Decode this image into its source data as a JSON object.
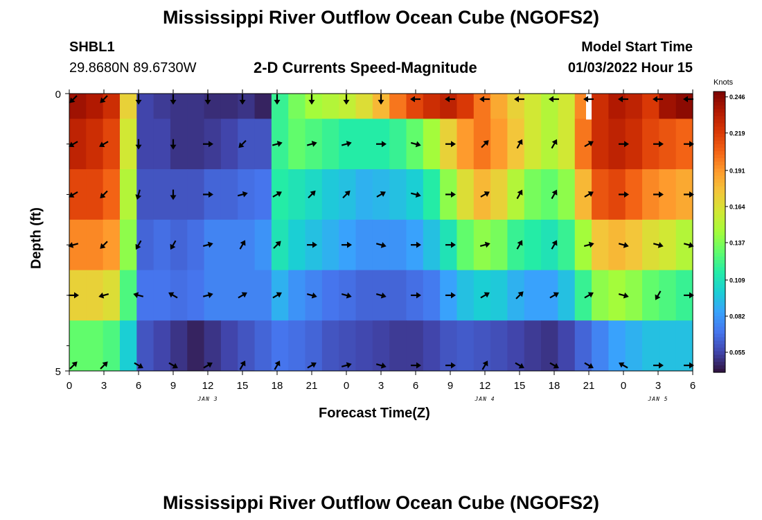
{
  "page": {
    "title": "Mississippi River Outflow Ocean Cube (NGOFS2)",
    "bottom_title": "Mississippi River Outflow Ocean Cube (NGOFS2)",
    "station": "SHBL1",
    "coords": "29.8680N  89.6730W",
    "subtitle": "2-D Currents Speed-Magnitude",
    "model_start_label": "Model Start Time",
    "model_start_value": "01/03/2022 Hour 15"
  },
  "chart_data": {
    "type": "heatmap",
    "title": "2-D Currents Speed-Magnitude",
    "xlabel": "Forecast Time(Z)",
    "ylabel": "Depth (ft)",
    "x_tick_labels": [
      "0",
      "3",
      "6",
      "9",
      "12",
      "15",
      "18",
      "21",
      "0",
      "3",
      "6",
      "9",
      "12",
      "15",
      "18",
      "21",
      "0",
      "3",
      "6"
    ],
    "x_hours": [
      0,
      3,
      6,
      9,
      12,
      15,
      18,
      21,
      24,
      27,
      30,
      33,
      36,
      39,
      42,
      45,
      48,
      51,
      54
    ],
    "date_labels": [
      {
        "text": "JAN 3",
        "hour": 12
      },
      {
        "text": "JAN 4",
        "hour": 36
      },
      {
        "text": "JAN 5",
        "hour": 51
      }
    ],
    "y_tick_labels": [
      "0",
      "5"
    ],
    "ylim": [
      0,
      5
    ],
    "depth_levels": [
      0,
      1,
      2,
      3,
      4,
      5
    ],
    "colorbar": {
      "unit": "Knots",
      "tick_labels": [
        "0.246",
        "0.219",
        "0.191",
        "0.164",
        "0.137",
        "0.109",
        "0.082",
        "0.055"
      ],
      "range": [
        0.04,
        0.25
      ],
      "colors": [
        "#30123b",
        "#4145ab",
        "#4675ed",
        "#39a2fc",
        "#1bcfd4",
        "#24eca6",
        "#61fc6c",
        "#a4fc3b",
        "#d1e834",
        "#f3c63a",
        "#fe9b2d",
        "#f36315",
        "#d93806",
        "#b11901",
        "#7a0403"
      ]
    },
    "rows": [
      {
        "depth": 0,
        "values": [
          0.24,
          0.235,
          0.225,
          0.17,
          0.055,
          0.052,
          0.05,
          0.05,
          0.048,
          0.048,
          0.05,
          0.045,
          0.12,
          0.135,
          0.145,
          0.15,
          0.155,
          0.165,
          0.18,
          0.2,
          0.215,
          0.225,
          0.23,
          0.22,
          0.2,
          0.185,
          0.17,
          0.16,
          0.15,
          0.16,
          0.195,
          0.225,
          0.235,
          0.23,
          0.22,
          0.24,
          0.245
        ]
      },
      {
        "depth": 1,
        "values": [
          0.23,
          0.225,
          0.215,
          0.16,
          0.055,
          0.055,
          0.05,
          0.05,
          0.052,
          0.055,
          0.06,
          0.06,
          0.12,
          0.13,
          0.125,
          0.12,
          0.115,
          0.115,
          0.115,
          0.12,
          0.13,
          0.145,
          0.17,
          0.19,
          0.2,
          0.19,
          0.175,
          0.16,
          0.15,
          0.16,
          0.2,
          0.225,
          0.23,
          0.225,
          0.215,
          0.21,
          0.205
        ]
      },
      {
        "depth": 2,
        "values": [
          0.215,
          0.215,
          0.205,
          0.15,
          0.06,
          0.06,
          0.06,
          0.06,
          0.065,
          0.065,
          0.068,
          0.07,
          0.115,
          0.11,
          0.105,
          0.098,
          0.095,
          0.09,
          0.092,
          0.095,
          0.1,
          0.115,
          0.14,
          0.165,
          0.18,
          0.17,
          0.15,
          0.135,
          0.13,
          0.14,
          0.18,
          0.21,
          0.215,
          0.205,
          0.195,
          0.19,
          0.185
        ]
      },
      {
        "depth": 3,
        "values": [
          0.195,
          0.195,
          0.19,
          0.14,
          0.065,
          0.068,
          0.065,
          0.068,
          0.075,
          0.075,
          0.075,
          0.08,
          0.11,
          0.1,
          0.095,
          0.09,
          0.085,
          0.08,
          0.08,
          0.08,
          0.085,
          0.095,
          0.11,
          0.13,
          0.14,
          0.135,
          0.12,
          0.115,
          0.11,
          0.12,
          0.145,
          0.175,
          0.18,
          0.175,
          0.165,
          0.16,
          0.15
        ]
      },
      {
        "depth": 4,
        "values": [
          0.17,
          0.17,
          0.165,
          0.125,
          0.07,
          0.07,
          0.068,
          0.07,
          0.075,
          0.075,
          0.075,
          0.075,
          0.09,
          0.08,
          0.075,
          0.07,
          0.068,
          0.065,
          0.065,
          0.065,
          0.068,
          0.072,
          0.085,
          0.095,
          0.1,
          0.098,
          0.09,
          0.085,
          0.085,
          0.095,
          0.12,
          0.14,
          0.145,
          0.14,
          0.13,
          0.125,
          0.12
        ]
      },
      {
        "depth": 5,
        "values": [
          0.13,
          0.13,
          0.125,
          0.1,
          0.06,
          0.055,
          0.05,
          0.045,
          0.05,
          0.055,
          0.06,
          0.065,
          0.07,
          0.068,
          0.065,
          0.06,
          0.058,
          0.056,
          0.054,
          0.052,
          0.052,
          0.055,
          0.06,
          0.062,
          0.06,
          0.058,
          0.055,
          0.052,
          0.05,
          0.055,
          0.065,
          0.075,
          0.085,
          0.09,
          0.095,
          0.095,
          0.095
        ]
      }
    ],
    "missing": [
      {
        "hour": 45,
        "depth": 0
      }
    ],
    "arrows": [
      {
        "depth": 0,
        "angles": [
          135,
          135,
          90,
          90,
          90,
          90,
          90,
          90,
          90,
          90,
          180,
          180,
          180,
          180,
          180,
          180,
          180,
          180,
          180
        ]
      },
      {
        "depth": 1,
        "angles": [
          150,
          150,
          90,
          90,
          0,
          135,
          345,
          345,
          345,
          0,
          15,
          0,
          315,
          300,
          300,
          330,
          0,
          0,
          0
        ]
      },
      {
        "depth": 2,
        "angles": [
          150,
          135,
          105,
          90,
          0,
          345,
          330,
          315,
          315,
          330,
          15,
          0,
          330,
          300,
          300,
          330,
          0,
          0,
          0
        ]
      },
      {
        "depth": 3,
        "angles": [
          165,
          135,
          120,
          120,
          345,
          300,
          315,
          0,
          0,
          15,
          0,
          0,
          345,
          300,
          300,
          345,
          15,
          15,
          15
        ]
      },
      {
        "depth": 4,
        "angles": [
          0,
          165,
          195,
          210,
          345,
          330,
          330,
          15,
          15,
          15,
          0,
          0,
          330,
          315,
          330,
          330,
          15,
          120,
          0
        ]
      },
      {
        "depth": 5,
        "angles": [
          315,
          315,
          30,
          30,
          330,
          300,
          300,
          330,
          345,
          15,
          0,
          0,
          300,
          30,
          30,
          30,
          210,
          0,
          0
        ]
      }
    ]
  }
}
